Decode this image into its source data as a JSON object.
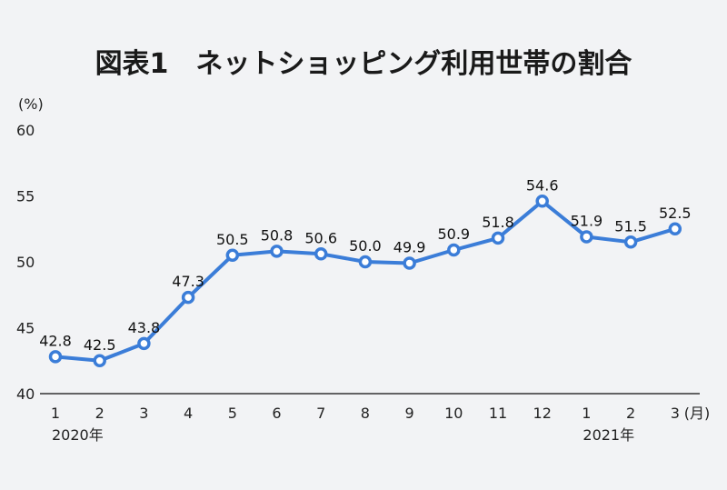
{
  "chart_data": {
    "type": "line",
    "title": "図表1　ネットショッピング利用世帯の割合",
    "y_unit": "(%)",
    "x_unit": "(月)",
    "ylim": [
      40,
      60
    ],
    "y_ticks": [
      "40",
      "45",
      "50",
      "55",
      "60"
    ],
    "categories": [
      "1",
      "2",
      "3",
      "4",
      "5",
      "6",
      "7",
      "8",
      "9",
      "10",
      "11",
      "12",
      "1",
      "2",
      "3"
    ],
    "year_labels": [
      {
        "index": 0,
        "label": "2020年"
      },
      {
        "index": 12,
        "label": "2021年"
      }
    ],
    "values": [
      42.8,
      42.5,
      43.8,
      47.3,
      50.5,
      50.8,
      50.6,
      50.0,
      49.9,
      50.9,
      51.8,
      54.6,
      51.9,
      51.5,
      52.5
    ],
    "data_labels": [
      "42.8",
      "42.5",
      "43.8",
      "47.3",
      "50.5",
      "50.8",
      "50.6",
      "50.0",
      "49.9",
      "50.9",
      "51.8",
      "54.6",
      "51.9",
      "51.5",
      "52.5"
    ],
    "colors": {
      "line": "#3b7dd8",
      "marker_fill": "#ffffff",
      "axis": "#333333"
    },
    "grid": false
  }
}
